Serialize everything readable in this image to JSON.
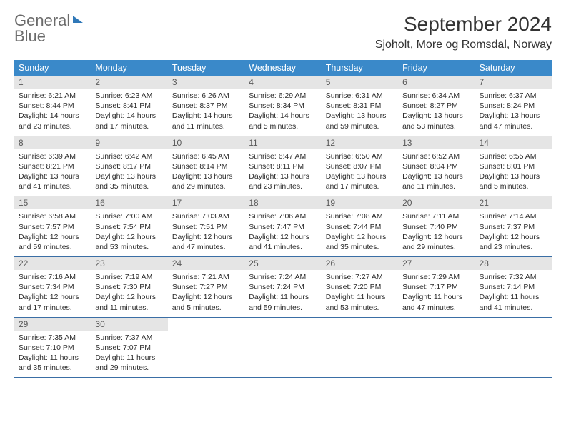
{
  "logo": {
    "word1": "General",
    "word2": "Blue"
  },
  "title": "September 2024",
  "location": "Sjoholt, More og Romsdal, Norway",
  "weekdays": [
    "Sunday",
    "Monday",
    "Tuesday",
    "Wednesday",
    "Thursday",
    "Friday",
    "Saturday"
  ],
  "colors": {
    "header_bg": "#3a89c9",
    "header_fg": "#ffffff",
    "daynum_bg": "#e5e5e5",
    "rule": "#3a6ea5",
    "logo_blue": "#2f78b8",
    "logo_gray": "#6b6b6b"
  },
  "fonts": {
    "title_pt": 28,
    "subtitle_pt": 16,
    "weekday_pt": 12.5,
    "daynum_pt": 12,
    "body_pt": 10.5
  },
  "weeks": [
    [
      {
        "n": "1",
        "sunrise": "6:21 AM",
        "sunset": "8:44 PM",
        "daylight": "14 hours and 23 minutes."
      },
      {
        "n": "2",
        "sunrise": "6:23 AM",
        "sunset": "8:41 PM",
        "daylight": "14 hours and 17 minutes."
      },
      {
        "n": "3",
        "sunrise": "6:26 AM",
        "sunset": "8:37 PM",
        "daylight": "14 hours and 11 minutes."
      },
      {
        "n": "4",
        "sunrise": "6:29 AM",
        "sunset": "8:34 PM",
        "daylight": "14 hours and 5 minutes."
      },
      {
        "n": "5",
        "sunrise": "6:31 AM",
        "sunset": "8:31 PM",
        "daylight": "13 hours and 59 minutes."
      },
      {
        "n": "6",
        "sunrise": "6:34 AM",
        "sunset": "8:27 PM",
        "daylight": "13 hours and 53 minutes."
      },
      {
        "n": "7",
        "sunrise": "6:37 AM",
        "sunset": "8:24 PM",
        "daylight": "13 hours and 47 minutes."
      }
    ],
    [
      {
        "n": "8",
        "sunrise": "6:39 AM",
        "sunset": "8:21 PM",
        "daylight": "13 hours and 41 minutes."
      },
      {
        "n": "9",
        "sunrise": "6:42 AM",
        "sunset": "8:17 PM",
        "daylight": "13 hours and 35 minutes."
      },
      {
        "n": "10",
        "sunrise": "6:45 AM",
        "sunset": "8:14 PM",
        "daylight": "13 hours and 29 minutes."
      },
      {
        "n": "11",
        "sunrise": "6:47 AM",
        "sunset": "8:11 PM",
        "daylight": "13 hours and 23 minutes."
      },
      {
        "n": "12",
        "sunrise": "6:50 AM",
        "sunset": "8:07 PM",
        "daylight": "13 hours and 17 minutes."
      },
      {
        "n": "13",
        "sunrise": "6:52 AM",
        "sunset": "8:04 PM",
        "daylight": "13 hours and 11 minutes."
      },
      {
        "n": "14",
        "sunrise": "6:55 AM",
        "sunset": "8:01 PM",
        "daylight": "13 hours and 5 minutes."
      }
    ],
    [
      {
        "n": "15",
        "sunrise": "6:58 AM",
        "sunset": "7:57 PM",
        "daylight": "12 hours and 59 minutes."
      },
      {
        "n": "16",
        "sunrise": "7:00 AM",
        "sunset": "7:54 PM",
        "daylight": "12 hours and 53 minutes."
      },
      {
        "n": "17",
        "sunrise": "7:03 AM",
        "sunset": "7:51 PM",
        "daylight": "12 hours and 47 minutes."
      },
      {
        "n": "18",
        "sunrise": "7:06 AM",
        "sunset": "7:47 PM",
        "daylight": "12 hours and 41 minutes."
      },
      {
        "n": "19",
        "sunrise": "7:08 AM",
        "sunset": "7:44 PM",
        "daylight": "12 hours and 35 minutes."
      },
      {
        "n": "20",
        "sunrise": "7:11 AM",
        "sunset": "7:40 PM",
        "daylight": "12 hours and 29 minutes."
      },
      {
        "n": "21",
        "sunrise": "7:14 AM",
        "sunset": "7:37 PM",
        "daylight": "12 hours and 23 minutes."
      }
    ],
    [
      {
        "n": "22",
        "sunrise": "7:16 AM",
        "sunset": "7:34 PM",
        "daylight": "12 hours and 17 minutes."
      },
      {
        "n": "23",
        "sunrise": "7:19 AM",
        "sunset": "7:30 PM",
        "daylight": "12 hours and 11 minutes."
      },
      {
        "n": "24",
        "sunrise": "7:21 AM",
        "sunset": "7:27 PM",
        "daylight": "12 hours and 5 minutes."
      },
      {
        "n": "25",
        "sunrise": "7:24 AM",
        "sunset": "7:24 PM",
        "daylight": "11 hours and 59 minutes."
      },
      {
        "n": "26",
        "sunrise": "7:27 AM",
        "sunset": "7:20 PM",
        "daylight": "11 hours and 53 minutes."
      },
      {
        "n": "27",
        "sunrise": "7:29 AM",
        "sunset": "7:17 PM",
        "daylight": "11 hours and 47 minutes."
      },
      {
        "n": "28",
        "sunrise": "7:32 AM",
        "sunset": "7:14 PM",
        "daylight": "11 hours and 41 minutes."
      }
    ],
    [
      {
        "n": "29",
        "sunrise": "7:35 AM",
        "sunset": "7:10 PM",
        "daylight": "11 hours and 35 minutes."
      },
      {
        "n": "30",
        "sunrise": "7:37 AM",
        "sunset": "7:07 PM",
        "daylight": "11 hours and 29 minutes."
      },
      null,
      null,
      null,
      null,
      null
    ]
  ]
}
